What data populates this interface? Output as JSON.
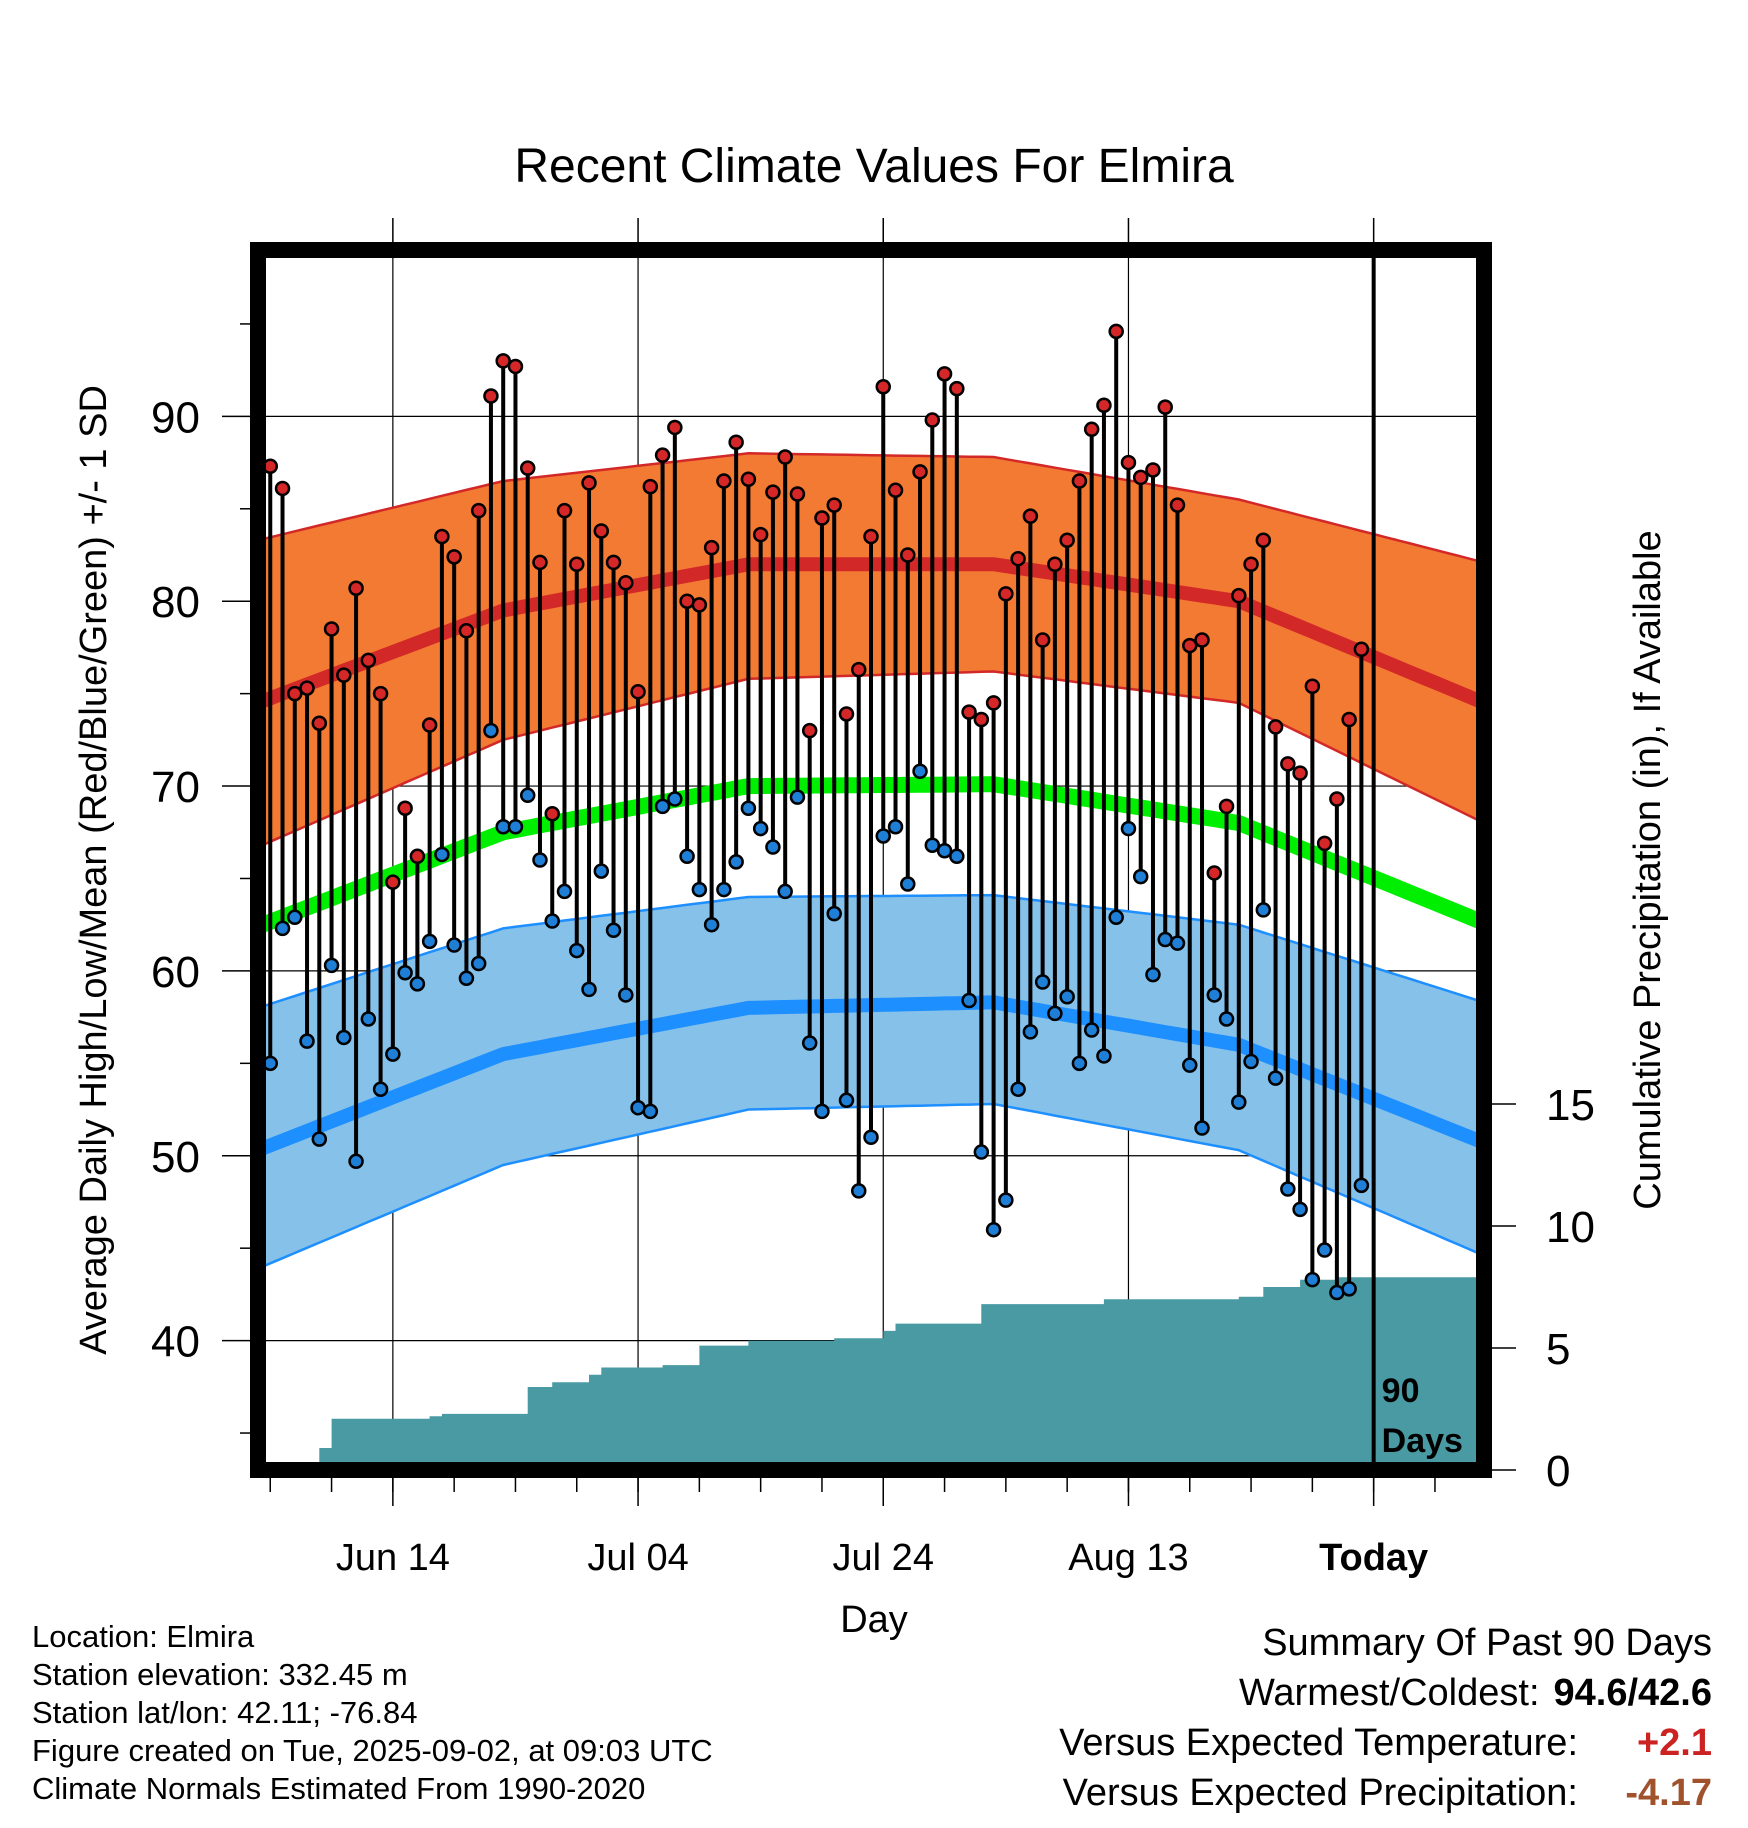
{
  "chart_data": {
    "type": "line",
    "title": "Recent Climate Values For Elmira",
    "xlabel": "Day",
    "ylabel": "Average Daily High/Low/Mean (Red/Blue/Green) +/- 1 SD",
    "y2label": "Cumulative Precipitation (in), If Available",
    "x_ticks": [
      "Jun 14",
      "Jul 04",
      "Jul 24",
      "Aug 13",
      "Today"
    ],
    "x_tick_days": [
      11,
      31,
      51,
      71,
      91
    ],
    "x_range_days": [
      0,
      100
    ],
    "today_day": 91,
    "ylim": [
      33,
      99
    ],
    "y_ticks": [
      40,
      50,
      60,
      70,
      80,
      90
    ],
    "y2lim": [
      0,
      15
    ],
    "y2_ticks": [
      0,
      5,
      10,
      15
    ],
    "grid": true,
    "today_marker_label": "90 Days",
    "colors": {
      "high_band": "#f37a32",
      "high_mean": "#d32828",
      "high_edge": "#d32828",
      "low_band": "#85c1e9",
      "low_mean": "#1e8fff",
      "low_edge": "#1e8fff",
      "mean_line": "#00ee00",
      "precip": "#4a9aa3",
      "high_dot": "#d62728",
      "low_dot": "#1f7fd6"
    },
    "normal_high": {
      "x": [
        0,
        20,
        40,
        60,
        80,
        100
      ],
      "mean": [
        74.5,
        79.5,
        82.0,
        82.0,
        80.0,
        74.5
      ],
      "upper": [
        83.3,
        86.5,
        88.0,
        87.8,
        85.5,
        82.1
      ],
      "lower": [
        66.7,
        72.5,
        75.8,
        76.2,
        74.5,
        68.0
      ]
    },
    "normal_low": {
      "x": [
        0,
        20,
        40,
        60,
        80,
        100
      ],
      "mean": [
        50.3,
        55.5,
        58.0,
        58.3,
        56.0,
        50.7
      ],
      "upper": [
        58.0,
        62.3,
        64.0,
        64.1,
        62.5,
        58.3
      ],
      "lower": [
        43.9,
        49.5,
        52.5,
        52.8,
        50.3,
        44.6
      ]
    },
    "normal_mean": {
      "x": [
        0,
        20,
        40,
        60,
        80,
        100
      ],
      "values": [
        62.4,
        67.5,
        70.0,
        70.1,
        68.0,
        62.6
      ]
    },
    "daily": {
      "high": [
        87.3,
        86.1,
        75.0,
        75.3,
        73.4,
        78.5,
        76.0,
        80.7,
        76.8,
        75.0,
        64.8,
        68.8,
        66.2,
        73.3,
        83.5,
        82.4,
        78.4,
        84.9,
        91.1,
        93.0,
        92.7,
        87.2,
        82.1,
        68.5,
        84.9,
        82.0,
        86.4,
        83.8,
        82.1,
        81.0,
        75.1,
        86.2,
        87.9,
        89.4,
        80.0,
        79.8,
        82.9,
        86.5,
        88.6,
        86.6,
        83.6,
        85.9,
        87.8,
        85.8,
        73.0,
        84.5,
        85.2,
        73.9,
        76.3,
        83.5,
        91.6,
        86.0,
        82.5,
        87.0,
        89.8,
        92.3,
        91.5,
        74.0,
        73.6,
        74.5,
        80.4,
        82.3,
        84.6,
        77.9,
        82.0,
        83.3,
        86.5,
        89.3,
        90.6,
        94.6,
        87.5,
        86.7,
        87.1,
        90.5,
        85.2,
        77.6,
        77.9,
        65.3,
        68.9,
        80.3,
        82.0,
        83.3,
        73.2,
        71.2,
        70.7,
        75.4,
        66.9,
        69.3,
        73.6,
        77.4
      ],
      "low": [
        55.0,
        62.3,
        62.9,
        56.2,
        50.9,
        60.3,
        56.4,
        49.7,
        57.4,
        53.6,
        55.5,
        59.9,
        59.3,
        61.6,
        66.3,
        61.4,
        59.6,
        60.4,
        73.0,
        67.8,
        67.8,
        69.5,
        66.0,
        62.7,
        64.3,
        61.1,
        59.0,
        65.4,
        62.2,
        58.7,
        52.6,
        52.4,
        68.9,
        69.3,
        66.2,
        64.4,
        62.5,
        64.4,
        65.9,
        68.8,
        67.7,
        66.7,
        64.3,
        69.4,
        56.1,
        52.4,
        63.1,
        53.0,
        48.1,
        51.0,
        67.3,
        67.8,
        64.7,
        70.8,
        66.8,
        66.5,
        66.2,
        58.4,
        50.2,
        46.0,
        47.6,
        53.6,
        56.7,
        59.4,
        57.7,
        58.6,
        55.0,
        56.8,
        55.4,
        62.9,
        67.7,
        65.1,
        59.8,
        61.7,
        61.5,
        54.9,
        51.5,
        58.7,
        57.4,
        52.9,
        55.1,
        63.3,
        54.2,
        48.2,
        47.1,
        43.3,
        44.9,
        42.6,
        42.8,
        48.4
      ]
    },
    "precip_cumulative": {
      "x": [
        2,
        5,
        6,
        8,
        14,
        15,
        20,
        22,
        24,
        27,
        28,
        33,
        36,
        39,
        40,
        47,
        51,
        52,
        58,
        59,
        63,
        69,
        76,
        80,
        82,
        85,
        88,
        90,
        100
      ],
      "values": [
        0.1,
        0.9,
        2.1,
        2.1,
        2.2,
        2.3,
        2.3,
        3.4,
        3.6,
        3.9,
        4.2,
        4.3,
        5.1,
        5.1,
        5.3,
        5.4,
        5.7,
        6.0,
        6.0,
        6.8,
        6.8,
        7.0,
        7.0,
        7.1,
        7.5,
        7.8,
        7.9,
        7.9,
        7.9
      ]
    }
  },
  "footer": {
    "location": "Location: Elmira",
    "elevation": "Station elevation: 332.45 m",
    "latlon": "Station lat/lon: 42.11; -76.84",
    "created": "Figure created on Tue, 2025-09-02, at 09:03 UTC",
    "normals": "Climate Normals Estimated From 1990-2020"
  },
  "summary": {
    "title": "Summary Of Past 90 Days",
    "warmest_coldest_label": "Warmest/Coldest:",
    "warmest_coldest_value": "94.6/42.6",
    "temp_label": "Versus Expected Temperature:",
    "temp_value": "+2.1",
    "temp_color": "#cc2222",
    "precip_label": "Versus Expected Precipitation:",
    "precip_value": "-4.17",
    "precip_color": "#a0522d"
  }
}
